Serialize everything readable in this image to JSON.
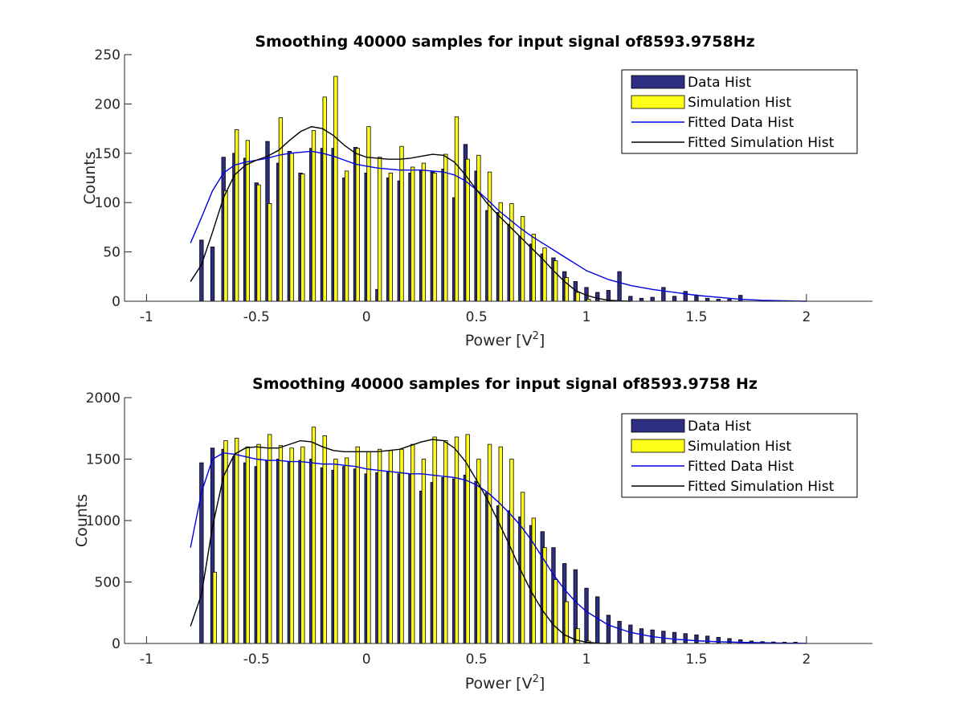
{
  "colors": {
    "data_bar": "#2e2e82",
    "sim_bar": "#ffff1a",
    "data_fit": "#0000e6",
    "sim_fit": "#000000",
    "axis": "#262626"
  },
  "chart_data": [
    {
      "type": "bar",
      "title": "Smoothing 40000 samples for input signal of8593.9758Hz",
      "xlabel": "Power [V",
      "xlabel_sup": "2",
      "xlabel_end": "]",
      "ylabel": "Counts",
      "xlim": [
        -1.1,
        2.3
      ],
      "ylim": [
        0,
        250
      ],
      "xticks": [
        -1,
        -0.5,
        0,
        0.5,
        1,
        1.5,
        2
      ],
      "xtick_labels": [
        "-1",
        "-0.5",
        "0",
        "0.5",
        "1",
        "1.5",
        "2"
      ],
      "yticks": [
        0,
        50,
        100,
        150,
        200,
        250
      ],
      "ytick_labels": [
        "0",
        "50",
        "100",
        "150",
        "200",
        "250"
      ],
      "legend_position": "top-right",
      "legend": [
        "Data Hist",
        "Simulation Hist",
        "Fitted Data Hist",
        "Fitted Simulation Hist"
      ],
      "series": [
        {
          "name": "Data Hist",
          "kind": "bar",
          "x": [
            -0.75,
            -0.7,
            -0.65,
            -0.6,
            -0.55,
            -0.5,
            -0.45,
            -0.4,
            -0.35,
            -0.3,
            -0.25,
            -0.2,
            -0.15,
            -0.1,
            -0.05,
            0,
            0.05,
            0.1,
            0.15,
            0.2,
            0.25,
            0.3,
            0.35,
            0.4,
            0.45,
            0.5,
            0.55,
            0.6,
            0.65,
            0.7,
            0.75,
            0.8,
            0.85,
            0.9,
            0.95,
            1,
            1.05,
            1.1,
            1.15,
            1.2,
            1.25,
            1.3,
            1.35,
            1.4,
            1.45,
            1.5,
            1.55,
            1.6,
            1.65,
            1.7
          ],
          "values": [
            62,
            55,
            146,
            150,
            145,
            120,
            162,
            140,
            152,
            130,
            155,
            155,
            155,
            125,
            156,
            130,
            12,
            125,
            122,
            130,
            132,
            132,
            134,
            105,
            159,
            132,
            92,
            90,
            78,
            66,
            58,
            48,
            44,
            30,
            20,
            14,
            9,
            11,
            30,
            5,
            3,
            4,
            14,
            5,
            10,
            6,
            3,
            2,
            2,
            6
          ]
        },
        {
          "name": "Simulation Hist",
          "kind": "bar",
          "x": [
            -0.64,
            -0.59,
            -0.54,
            -0.49,
            -0.44,
            -0.39,
            -0.34,
            -0.29,
            -0.24,
            -0.19,
            -0.14,
            -0.09,
            -0.04,
            0.01,
            0.06,
            0.11,
            0.16,
            0.21,
            0.26,
            0.31,
            0.36,
            0.41,
            0.46,
            0.51,
            0.56,
            0.61,
            0.66,
            0.71,
            0.76,
            0.81,
            0.86,
            0.91,
            0.96,
            1.01
          ],
          "values": [
            112,
            174,
            163,
            118,
            99,
            186,
            150,
            129,
            173,
            207,
            228,
            132,
            155,
            177,
            146,
            130,
            157,
            136,
            140,
            130,
            149,
            187,
            144,
            148,
            131,
            100,
            99,
            86,
            68,
            54,
            41,
            24,
            9,
            2
          ]
        },
        {
          "name": "Fitted Data Hist",
          "kind": "line",
          "x": [
            -0.8,
            -0.75,
            -0.7,
            -0.65,
            -0.6,
            -0.55,
            -0.5,
            -0.45,
            -0.4,
            -0.35,
            -0.3,
            -0.25,
            -0.2,
            -0.15,
            -0.1,
            -0.05,
            0,
            0.05,
            0.1,
            0.15,
            0.2,
            0.25,
            0.3,
            0.35,
            0.4,
            0.45,
            0.5,
            0.55,
            0.6,
            0.65,
            0.7,
            0.75,
            0.8,
            0.85,
            0.9,
            0.95,
            1,
            1.1,
            1.2,
            1.3,
            1.4,
            1.5,
            1.6,
            1.7,
            1.8,
            1.9,
            2
          ],
          "values": [
            59,
            85,
            112,
            130,
            138,
            141,
            143,
            145,
            148,
            150,
            151,
            152,
            150,
            147,
            143,
            139,
            137,
            135,
            134,
            133,
            133,
            133,
            132,
            131,
            128,
            122,
            113,
            103,
            92,
            83,
            74,
            66,
            59,
            52,
            45,
            38,
            31,
            22,
            16,
            12,
            9,
            6,
            4,
            2,
            1,
            0.5,
            0
          ]
        },
        {
          "name": "Fitted Simulation Hist",
          "kind": "line",
          "x": [
            -0.8,
            -0.75,
            -0.7,
            -0.65,
            -0.6,
            -0.55,
            -0.5,
            -0.45,
            -0.4,
            -0.35,
            -0.3,
            -0.25,
            -0.2,
            -0.15,
            -0.1,
            -0.05,
            0,
            0.05,
            0.1,
            0.15,
            0.2,
            0.25,
            0.3,
            0.35,
            0.4,
            0.45,
            0.5,
            0.55,
            0.6,
            0.65,
            0.7,
            0.75,
            0.8,
            0.85,
            0.9,
            0.95,
            1,
            1.05,
            1.1,
            1.15,
            1.2
          ],
          "values": [
            20,
            37,
            70,
            105,
            128,
            138,
            143,
            147,
            153,
            163,
            172,
            177,
            175,
            168,
            158,
            150,
            146,
            145,
            144,
            144,
            145,
            147,
            149,
            148,
            141,
            128,
            113,
            99,
            87,
            76,
            65,
            54,
            43,
            31,
            20,
            11,
            6,
            3,
            1,
            0.5,
            0
          ]
        }
      ]
    },
    {
      "type": "bar",
      "title": "Smoothing 40000 samples for input signal of8593.9758 Hz",
      "xlabel": "Power [V",
      "xlabel_sup": "2",
      "xlabel_end": "]",
      "ylabel": "Counts",
      "xlim": [
        -1.1,
        2.3
      ],
      "ylim": [
        0,
        2000
      ],
      "xticks": [
        -1,
        -0.5,
        0,
        0.5,
        1,
        1.5,
        2
      ],
      "xtick_labels": [
        "-1",
        "-0.5",
        "0",
        "0.5",
        "1",
        "1.5",
        "2"
      ],
      "yticks": [
        0,
        500,
        1000,
        1500,
        2000
      ],
      "ytick_labels": [
        "0",
        "500",
        "1000",
        "1500",
        "2000"
      ],
      "legend_position": "top-right",
      "legend": [
        "Data Hist",
        "Simulation Hist",
        "Fitted Data Hist",
        "Fitted Simulation Hist"
      ],
      "series": [
        {
          "name": "Data Hist",
          "kind": "bar",
          "x": [
            -0.75,
            -0.7,
            -0.65,
            -0.6,
            -0.55,
            -0.5,
            -0.45,
            -0.4,
            -0.35,
            -0.3,
            -0.25,
            -0.2,
            -0.15,
            -0.1,
            -0.05,
            0,
            0.05,
            0.1,
            0.15,
            0.2,
            0.25,
            0.3,
            0.35,
            0.4,
            0.45,
            0.5,
            0.55,
            0.6,
            0.65,
            0.7,
            0.75,
            0.8,
            0.85,
            0.9,
            0.95,
            1,
            1.05,
            1.1,
            1.15,
            1.2,
            1.25,
            1.3,
            1.35,
            1.4,
            1.45,
            1.5,
            1.55,
            1.6,
            1.65,
            1.7,
            1.75,
            1.8,
            1.85,
            1.9,
            1.95
          ],
          "values": [
            1470,
            1590,
            1580,
            1520,
            1470,
            1440,
            1490,
            1500,
            1480,
            1490,
            1500,
            1430,
            1410,
            1440,
            1420,
            1380,
            1390,
            1400,
            1380,
            1380,
            1240,
            1310,
            1350,
            1340,
            1370,
            1320,
            1230,
            1120,
            1080,
            1030,
            960,
            910,
            780,
            650,
            600,
            450,
            380,
            230,
            180,
            150,
            120,
            110,
            100,
            90,
            80,
            70,
            60,
            50,
            40,
            30,
            20,
            15,
            12,
            10,
            10
          ]
        },
        {
          "name": "Simulation Hist",
          "kind": "bar",
          "x": [
            -0.69,
            -0.64,
            -0.59,
            -0.54,
            -0.49,
            -0.44,
            -0.39,
            -0.34,
            -0.29,
            -0.24,
            -0.19,
            -0.14,
            -0.09,
            -0.04,
            0.01,
            0.06,
            0.11,
            0.16,
            0.21,
            0.26,
            0.31,
            0.36,
            0.41,
            0.46,
            0.51,
            0.56,
            0.61,
            0.66,
            0.71,
            0.76,
            0.81,
            0.86,
            0.91,
            0.96,
            1.01
          ],
          "values": [
            580,
            1650,
            1670,
            1600,
            1620,
            1700,
            1610,
            1590,
            1600,
            1760,
            1690,
            1500,
            1510,
            1600,
            1560,
            1580,
            1570,
            1580,
            1620,
            1500,
            1680,
            1650,
            1680,
            1700,
            1500,
            1620,
            1600,
            1500,
            1230,
            1020,
            780,
            520,
            340,
            120,
            20
          ]
        },
        {
          "name": "Fitted Data Hist",
          "kind": "line",
          "x": [
            -0.8,
            -0.75,
            -0.7,
            -0.65,
            -0.6,
            -0.55,
            -0.5,
            -0.45,
            -0.4,
            -0.35,
            -0.3,
            -0.25,
            -0.2,
            -0.15,
            -0.1,
            -0.05,
            0,
            0.05,
            0.1,
            0.15,
            0.2,
            0.25,
            0.3,
            0.35,
            0.4,
            0.45,
            0.5,
            0.55,
            0.6,
            0.65,
            0.7,
            0.75,
            0.8,
            0.85,
            0.9,
            0.95,
            1,
            1.1,
            1.2,
            1.3,
            1.4,
            1.5,
            1.6,
            1.7,
            1.8,
            1.9,
            2
          ],
          "values": [
            780,
            1230,
            1500,
            1550,
            1540,
            1520,
            1500,
            1490,
            1490,
            1480,
            1480,
            1470,
            1460,
            1460,
            1450,
            1440,
            1420,
            1410,
            1400,
            1390,
            1380,
            1380,
            1370,
            1360,
            1350,
            1330,
            1290,
            1230,
            1150,
            1060,
            960,
            840,
            700,
            560,
            440,
            340,
            260,
            150,
            90,
            55,
            35,
            22,
            14,
            9,
            6,
            3,
            1
          ]
        },
        {
          "name": "Fitted Simulation Hist",
          "kind": "line",
          "x": [
            -0.8,
            -0.75,
            -0.7,
            -0.65,
            -0.6,
            -0.55,
            -0.5,
            -0.45,
            -0.4,
            -0.35,
            -0.3,
            -0.25,
            -0.2,
            -0.15,
            -0.1,
            -0.05,
            0,
            0.05,
            0.1,
            0.15,
            0.2,
            0.25,
            0.3,
            0.35,
            0.4,
            0.45,
            0.5,
            0.55,
            0.6,
            0.65,
            0.7,
            0.75,
            0.8,
            0.85,
            0.9,
            0.95,
            1,
            1.05,
            1.1
          ],
          "values": [
            140,
            400,
            950,
            1360,
            1540,
            1590,
            1600,
            1590,
            1590,
            1620,
            1650,
            1640,
            1600,
            1570,
            1560,
            1560,
            1560,
            1560,
            1570,
            1580,
            1610,
            1640,
            1660,
            1650,
            1590,
            1480,
            1330,
            1170,
            990,
            800,
            600,
            420,
            270,
            150,
            70,
            30,
            10,
            3,
            0
          ]
        }
      ]
    }
  ]
}
